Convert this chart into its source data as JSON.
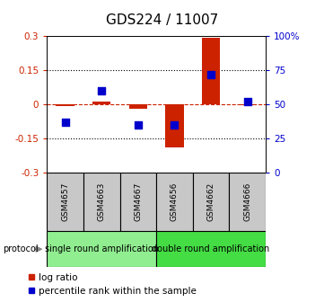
{
  "title": "GDS224 / 11007",
  "samples": [
    "GSM4657",
    "GSM4663",
    "GSM4667",
    "GSM4656",
    "GSM4662",
    "GSM4666"
  ],
  "log_ratio": [
    -0.01,
    0.01,
    -0.02,
    -0.19,
    0.295,
    -0.005
  ],
  "percentile_rank": [
    37,
    60,
    35,
    35,
    72,
    52
  ],
  "ylim_left": [
    -0.3,
    0.3
  ],
  "ylim_right": [
    0,
    100
  ],
  "yticks_left": [
    -0.3,
    -0.15,
    0,
    0.15,
    0.3
  ],
  "yticks_right": [
    0,
    25,
    50,
    75,
    100
  ],
  "ytick_labels_left": [
    "-0.3",
    "-0.15",
    "0",
    "0.15",
    "0.3"
  ],
  "ytick_labels_right": [
    "0",
    "25",
    "50",
    "75",
    "100%"
  ],
  "protocol_groups": [
    {
      "label": "single round amplification",
      "color": "#90EE90",
      "start": 0,
      "end": 3
    },
    {
      "label": "double round amplification",
      "color": "#44DD44",
      "start": 3,
      "end": 6
    }
  ],
  "protocol_label": "protocol",
  "bar_color": "#CC2200",
  "dot_color": "#0000CC",
  "bar_width": 0.5,
  "dot_size": 30,
  "sample_box_color": "#C8C8C8",
  "background_color": "#ffffff",
  "title_fontsize": 11,
  "tick_fontsize": 7.5,
  "sample_fontsize": 6.5,
  "proto_fontsize": 7,
  "legend_fontsize": 7.5
}
